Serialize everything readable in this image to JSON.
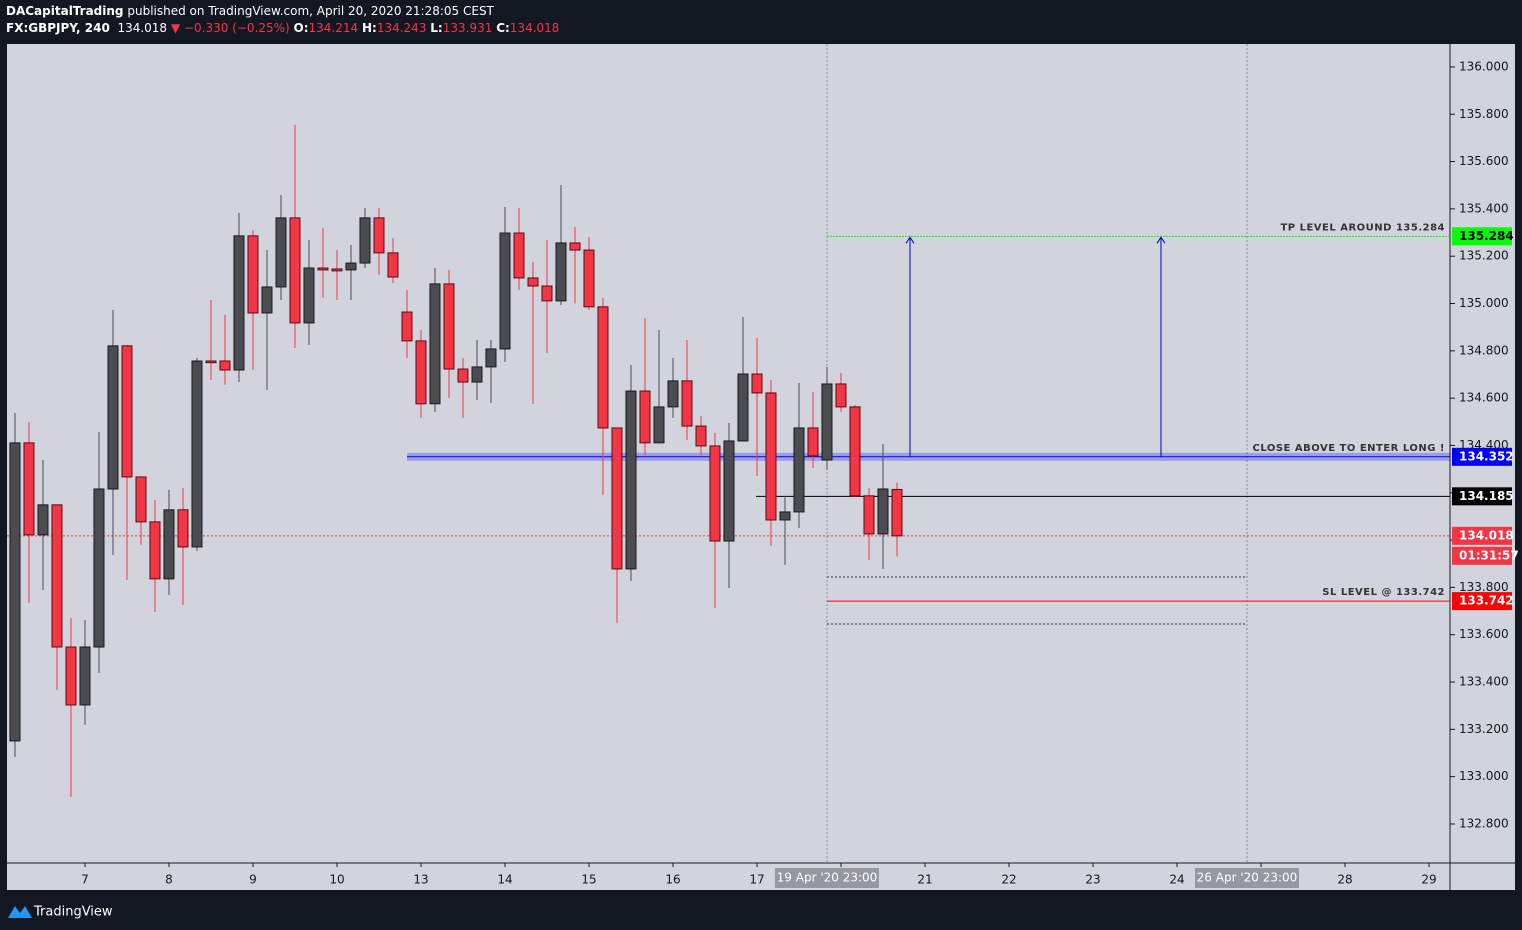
{
  "header": {
    "author": "DACapitalTrading",
    "published": "published on TradingView.com, April 20, 2020 21:28:05 CEST",
    "symbol": "FX:GBPJPY, 240",
    "last": "134.018",
    "change": "▼ −0.330 (−0.25%)",
    "ohlc": [
      [
        "O:",
        "134.214"
      ],
      [
        "H:",
        "134.243"
      ],
      [
        "L:",
        "133.931"
      ],
      [
        "C:",
        "134.018"
      ]
    ]
  },
  "footer": {
    "brand": "TradingView"
  },
  "chart_data": {
    "type": "candlestick",
    "open": [
      133.151,
      134.411,
      134.022,
      134.149,
      133.548,
      133.303,
      133.548,
      134.216,
      134.821,
      134.267,
      134.077,
      133.836,
      134.128,
      133.971,
      134.757,
      134.757,
      134.719,
      135.286,
      134.96,
      135.07,
      135.362,
      134.918,
      135.15,
      135.146,
      135.142,
      135.171,
      135.362,
      135.214,
      134.964,
      134.842,
      134.576,
      135.083,
      134.723,
      134.668,
      134.732,
      134.808,
      135.298,
      135.108,
      135.074,
      135.011,
      135.256,
      135.226,
      134.986,
      134.474,
      133.878,
      134.63,
      134.411,
      134.563,
      134.673,
      134.482,
      134.398,
      133.996,
      134.419,
      134.702,
      134.622,
      134.085,
      134.119,
      134.474,
      134.339,
      134.66,
      134.563,
      134.187,
      134.026,
      134.214
    ],
    "high": [
      134.537,
      134.499,
      134.339,
      134.149,
      133.671,
      133.662,
      134.457,
      134.973,
      134.825,
      134.267,
      134.17,
      134.212,
      134.22,
      134.77,
      135.015,
      134.952,
      135.383,
      135.311,
      135.226,
      135.459,
      135.755,
      135.269,
      135.32,
      135.226,
      135.248,
      135.404,
      135.404,
      135.277,
      135.057,
      134.888,
      135.15,
      135.142,
      134.77,
      134.846,
      134.846,
      135.408,
      135.404,
      135.176,
      135.269,
      135.501,
      135.324,
      135.281,
      135.024,
      134.474,
      134.74,
      134.939,
      134.888,
      134.77,
      134.846,
      134.525,
      134.453,
      134.495,
      134.943,
      134.854,
      134.677,
      134.187,
      134.664,
      134.626,
      134.732,
      134.706,
      134.571,
      134.22,
      134.406,
      134.243
    ],
    "low": [
      133.083,
      133.734,
      133.789,
      133.367,
      132.914,
      133.219,
      133.438,
      133.937,
      133.832,
      133.98,
      133.696,
      133.768,
      133.726,
      133.954,
      134.677,
      134.656,
      134.668,
      134.719,
      134.635,
      135.015,
      134.812,
      134.825,
      135.024,
      135.015,
      135.015,
      135.15,
      135.121,
      135.087,
      134.77,
      134.516,
      134.542,
      134.601,
      134.516,
      134.592,
      134.58,
      134.753,
      135.057,
      134.576,
      134.791,
      134.994,
      135.0,
      134.973,
      134.191,
      133.65,
      133.827,
      134.36,
      134.411,
      134.516,
      134.423,
      134.36,
      133.713,
      133.798,
      134.419,
      134.271,
      133.975,
      133.895,
      134.051,
      134.305,
      134.297,
      134.542,
      134.183,
      133.916,
      133.878,
      133.931
    ],
    "close": [
      134.411,
      134.022,
      134.149,
      133.548,
      133.303,
      133.548,
      134.216,
      134.821,
      134.267,
      134.077,
      133.836,
      134.128,
      133.971,
      134.757,
      134.75,
      134.719,
      135.286,
      134.96,
      135.07,
      135.362,
      134.918,
      135.15,
      135.142,
      135.138,
      135.171,
      135.362,
      135.214,
      135.112,
      134.842,
      134.576,
      135.083,
      134.723,
      134.668,
      134.732,
      134.808,
      135.298,
      135.108,
      135.074,
      135.011,
      135.256,
      135.226,
      134.986,
      134.474,
      133.878,
      134.63,
      134.411,
      134.563,
      134.673,
      134.482,
      134.398,
      133.996,
      134.419,
      134.702,
      134.622,
      134.085,
      134.119,
      134.474,
      134.356,
      134.66,
      134.563,
      134.187,
      134.026,
      134.216,
      134.018
    ],
    "up_color": "#4a4c52",
    "down_color": "#f23645",
    "xlim": [
      -0.57,
      102.5
    ],
    "xticks": [
      {
        "value": 5,
        "label": "7"
      },
      {
        "value": 11,
        "label": "8"
      },
      {
        "value": 17,
        "label": "9"
      },
      {
        "value": 23,
        "label": "10"
      },
      {
        "value": 29,
        "label": "13"
      },
      {
        "value": 35,
        "label": "14"
      },
      {
        "value": 41,
        "label": "15"
      },
      {
        "value": 47,
        "label": "16"
      },
      {
        "value": 53,
        "label": "17"
      },
      {
        "value": 59,
        "label": "20"
      },
      {
        "value": 65,
        "label": "21"
      },
      {
        "value": 71,
        "label": "22"
      },
      {
        "value": 77,
        "label": "23"
      },
      {
        "value": 83,
        "label": "24"
      },
      {
        "value": 89,
        "label": "27"
      },
      {
        "value": 95,
        "label": "28"
      },
      {
        "value": 101,
        "label": "29"
      }
    ],
    "ylim": [
      132.635,
      136.097
    ],
    "yticks": [
      {
        "value": 132.8,
        "label": "132.800"
      },
      {
        "value": 133,
        "label": "133.000"
      },
      {
        "value": 133.2,
        "label": "133.200"
      },
      {
        "value": 133.4,
        "label": "133.400"
      },
      {
        "value": 133.6,
        "label": "133.600"
      },
      {
        "value": 133.8,
        "label": "133.800"
      },
      {
        "value": 134,
        "label": "134.000"
      },
      {
        "value": 134.2,
        "label": "134.200"
      },
      {
        "value": 134.4,
        "label": "134.400"
      },
      {
        "value": 134.6,
        "label": "134.600"
      },
      {
        "value": 134.8,
        "label": "134.800"
      },
      {
        "value": 135,
        "label": "135.000"
      },
      {
        "value": 135.2,
        "label": "135.200"
      },
      {
        "value": 135.4,
        "label": "135.400"
      },
      {
        "value": 135.6,
        "label": "135.600"
      },
      {
        "value": 135.8,
        "label": "135.800"
      },
      {
        "value": 136,
        "label": "136.000"
      }
    ],
    "time_markers": [
      {
        "x": 58,
        "label": "19 Apr '20 23:00"
      },
      {
        "x": 88,
        "label": "26 Apr '20 23:00"
      }
    ],
    "levels": {
      "tp": {
        "price": 135.284,
        "note": "TP LEVEL AROUND 135.284",
        "color": "#00ff00"
      },
      "entry": {
        "price": 134.352,
        "note": "CLOSE ABOVE TO ENTER LONG !",
        "color": "#0000ff"
      },
      "mid": {
        "price": 134.185,
        "color": "#000000"
      },
      "last": {
        "price": 134.018,
        "countdown": "01:31:57",
        "color": "#f23645"
      },
      "sl": {
        "price": 133.742,
        "note": "SL LEVEL @ 133.742",
        "color": "#ff0000"
      }
    }
  }
}
